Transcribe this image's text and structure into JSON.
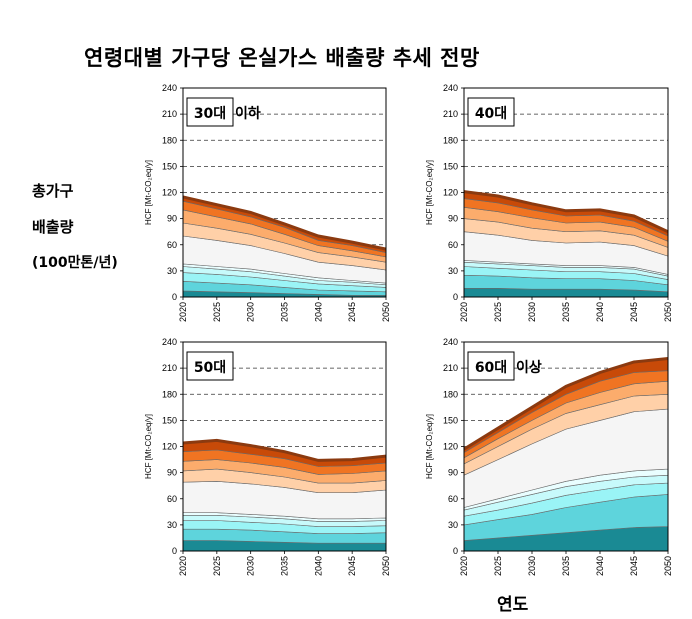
{
  "title": "연령대별 가구당 온실가스 배출량 추세 전망",
  "side_label": {
    "line1": "총가구",
    "line2": "배출량",
    "line3": "(100만톤/년)"
  },
  "x_axis_title": "연도",
  "chart_data": [
    {
      "type": "area",
      "title_boxed": "30대",
      "title_rest": "이하",
      "ylabel": "HCF [Mt-CO₂eq/y]",
      "x": [
        2020,
        2025,
        2030,
        2035,
        2040,
        2045,
        2050
      ],
      "ylim": [
        0,
        240
      ],
      "yticks": [
        0,
        30,
        60,
        90,
        120,
        150,
        180,
        210,
        240
      ],
      "grid": "dashed horizontal",
      "cumulative": [
        [
          7,
          6,
          5,
          4,
          3,
          2,
          2
        ],
        [
          18,
          16,
          14,
          11,
          8,
          7,
          6
        ],
        [
          28,
          26,
          23,
          19,
          15,
          13,
          11
        ],
        [
          35,
          32,
          29,
          24,
          19,
          17,
          14
        ],
        [
          38,
          35,
          32,
          27,
          22,
          19,
          16
        ],
        [
          70,
          65,
          59,
          50,
          40,
          36,
          31
        ],
        [
          85,
          79,
          72,
          62,
          51,
          46,
          40
        ],
        [
          100,
          92,
          84,
          72,
          59,
          53,
          46
        ],
        [
          110,
          101,
          92,
          80,
          65,
          59,
          51
        ],
        [
          115,
          106,
          97,
          84,
          70,
          63,
          55
        ]
      ]
    },
    {
      "type": "area",
      "title_boxed": "40대",
      "title_rest": "",
      "ylabel": "HCF [Mt-CO₂eq/y]",
      "x": [
        2020,
        2025,
        2030,
        2035,
        2040,
        2045,
        2050
      ],
      "ylim": [
        0,
        240
      ],
      "yticks": [
        0,
        30,
        60,
        90,
        120,
        150,
        180,
        210,
        240
      ],
      "grid": "dashed horizontal",
      "cumulative": [
        [
          10,
          10,
          9,
          9,
          9,
          8,
          6
        ],
        [
          25,
          24,
          22,
          21,
          21,
          19,
          14
        ],
        [
          35,
          33,
          31,
          29,
          29,
          27,
          20
        ],
        [
          40,
          38,
          36,
          34,
          34,
          32,
          24
        ],
        [
          42,
          40,
          38,
          36,
          36,
          34,
          26
        ],
        [
          75,
          71,
          65,
          62,
          63,
          59,
          47
        ],
        [
          90,
          86,
          79,
          75,
          76,
          71,
          57
        ],
        [
          103,
          98,
          91,
          85,
          86,
          80,
          64
        ],
        [
          113,
          108,
          100,
          93,
          94,
          87,
          70
        ],
        [
          121,
          116,
          107,
          99,
          100,
          93,
          75
        ]
      ]
    },
    {
      "type": "area",
      "title_boxed": "50대",
      "title_rest": "",
      "ylabel": "HCF [Mt-CO₂eq/y]",
      "x": [
        2020,
        2025,
        2030,
        2035,
        2040,
        2045,
        2050
      ],
      "ylim": [
        0,
        240
      ],
      "yticks": [
        0,
        30,
        60,
        90,
        120,
        150,
        180,
        210,
        240
      ],
      "grid": "dashed horizontal",
      "cumulative": [
        [
          12,
          12,
          11,
          10,
          9,
          9,
          9
        ],
        [
          25,
          25,
          24,
          22,
          20,
          20,
          21
        ],
        [
          35,
          35,
          33,
          31,
          28,
          28,
          29
        ],
        [
          41,
          41,
          39,
          37,
          34,
          34,
          35
        ],
        [
          44,
          44,
          42,
          40,
          37,
          37,
          38
        ],
        [
          79,
          80,
          77,
          73,
          67,
          67,
          70
        ],
        [
          92,
          94,
          90,
          85,
          78,
          78,
          81
        ],
        [
          103,
          105,
          101,
          96,
          88,
          89,
          92
        ],
        [
          114,
          116,
          111,
          106,
          97,
          98,
          101
        ],
        [
          124,
          127,
          121,
          114,
          104,
          105,
          109
        ]
      ]
    },
    {
      "type": "area",
      "title_boxed": "60대",
      "title_rest": "이상",
      "ylabel": "HCF [Mt-CO₂eq/y]",
      "x": [
        2020,
        2025,
        2030,
        2035,
        2040,
        2045,
        2050
      ],
      "ylim": [
        0,
        240
      ],
      "yticks": [
        0,
        30,
        60,
        90,
        120,
        150,
        180,
        210,
        240
      ],
      "grid": "dashed horizontal",
      "cumulative": [
        [
          12,
          15,
          18,
          21,
          24,
          27,
          28
        ],
        [
          30,
          36,
          42,
          50,
          56,
          62,
          65
        ],
        [
          40,
          47,
          55,
          64,
          70,
          76,
          78
        ],
        [
          47,
          56,
          65,
          74,
          80,
          85,
          87
        ],
        [
          50,
          60,
          70,
          80,
          87,
          92,
          94
        ],
        [
          87,
          105,
          123,
          140,
          150,
          160,
          163
        ],
        [
          100,
          120,
          140,
          158,
          168,
          178,
          180
        ],
        [
          107,
          129,
          150,
          170,
          182,
          192,
          195
        ],
        [
          113,
          136,
          159,
          180,
          195,
          205,
          207
        ],
        [
          117,
          141,
          165,
          189,
          205,
          217,
          221
        ]
      ]
    }
  ],
  "band_colors": [
    "#1a8a94",
    "#5ed4dc",
    "#9af4f6",
    "#c7fafb",
    "#e9feff",
    "#f5f5f5",
    "#ffd0a8",
    "#fcac6c",
    "#f07422",
    "#c84a08"
  ],
  "top_edge_color": "#8b3a10"
}
